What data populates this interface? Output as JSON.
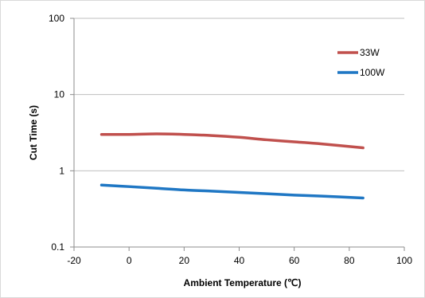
{
  "chart_data": {
    "type": "line",
    "title": "",
    "xlabel": "Ambient Temperature (℃)",
    "ylabel": "Cut Time (s)",
    "xlim": [
      -20,
      100
    ],
    "ylim": [
      0.1,
      100
    ],
    "yscale": "log",
    "x_ticks": [
      "-20",
      "0",
      "20",
      "40",
      "60",
      "80",
      "100"
    ],
    "y_ticks": [
      "0.1",
      "1",
      "10",
      "100"
    ],
    "grid": "horizontal",
    "legend_position": "top-right",
    "series": [
      {
        "name": "33W",
        "color": "#c0504d",
        "x": [
          -10,
          0,
          10,
          20,
          30,
          40,
          50,
          60,
          70,
          85
        ],
        "y": [
          3.0,
          3.0,
          3.05,
          3.0,
          2.9,
          2.75,
          2.55,
          2.4,
          2.25,
          2.0
        ]
      },
      {
        "name": "100W",
        "color": "#1f77c4",
        "x": [
          -10,
          0,
          10,
          20,
          30,
          40,
          50,
          60,
          70,
          85
        ],
        "y": [
          0.65,
          0.62,
          0.59,
          0.56,
          0.54,
          0.52,
          0.5,
          0.48,
          0.465,
          0.44
        ]
      }
    ]
  }
}
